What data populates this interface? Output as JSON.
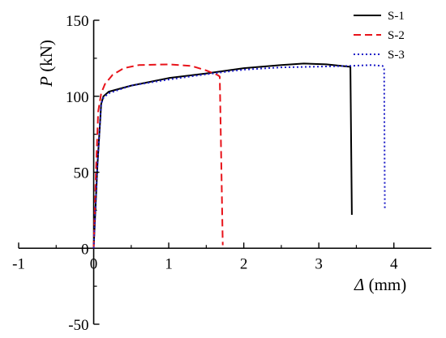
{
  "chart_data": {
    "type": "line",
    "xlabel": {
      "symbol": "Δ",
      "unit": " (mm)"
    },
    "ylabel": {
      "symbol": "P",
      "unit": " (kN)"
    },
    "xlim": [
      -1,
      4.5
    ],
    "ylim": [
      -50,
      150
    ],
    "xticks": [
      -1,
      0,
      1,
      2,
      3,
      4
    ],
    "xtick_labels": [
      "-1",
      "0",
      "1",
      "2",
      "3",
      "4"
    ],
    "yticks": [
      -50,
      0,
      50,
      100,
      150
    ],
    "ytick_labels": [
      "-50",
      "0",
      "50",
      "100",
      "150"
    ],
    "grid": false,
    "legend_position": "top-right",
    "series": [
      {
        "name": "S-1",
        "color": "#000000",
        "style": "solid",
        "x": [
          0,
          0.05,
          0.1,
          0.13,
          0.2,
          0.5,
          1.0,
          1.5,
          2.0,
          2.5,
          2.8,
          3.1,
          3.4,
          3.42,
          3.44
        ],
        "y": [
          0,
          55,
          95,
          100,
          103,
          107,
          112,
          115,
          118.5,
          120.5,
          121.5,
          121,
          119.5,
          119.5,
          22
        ]
      },
      {
        "name": "S-2",
        "color": "#e8131a",
        "style": "dashed",
        "x": [
          0,
          0.03,
          0.06,
          0.1,
          0.15,
          0.25,
          0.4,
          0.6,
          1.0,
          1.3,
          1.5,
          1.65,
          1.68,
          1.72
        ],
        "y": [
          0,
          50,
          90,
          102,
          108,
          114,
          118.5,
          120.5,
          121,
          120,
          117,
          114,
          113,
          2
        ]
      },
      {
        "name": "S-3",
        "color": "#1c1cc8",
        "style": "dotted",
        "x": [
          0,
          0.05,
          0.1,
          0.13,
          0.2,
          0.5,
          1.0,
          1.5,
          2.0,
          2.5,
          3.0,
          3.4,
          3.7,
          3.85,
          3.87,
          3.88
        ],
        "y": [
          0,
          55,
          95,
          99,
          102,
          107,
          111,
          114.5,
          117.5,
          119,
          119.5,
          120,
          120.5,
          120,
          119,
          25
        ]
      }
    ]
  }
}
